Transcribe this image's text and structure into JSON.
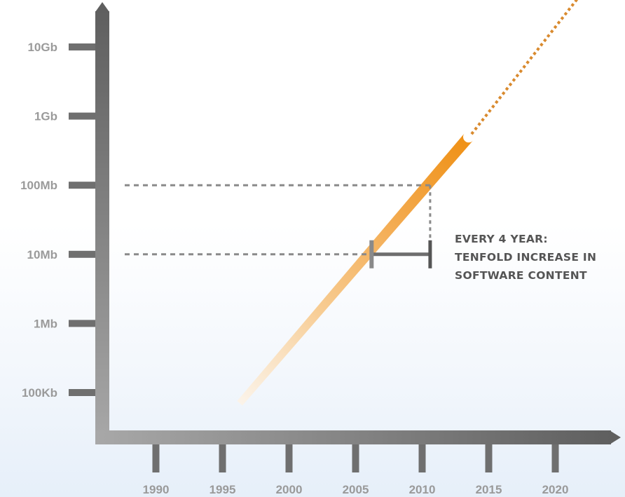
{
  "chart_data": {
    "type": "line",
    "title": "",
    "xlabel": "",
    "ylabel": "",
    "x_ticks": [
      1990,
      1995,
      2000,
      2005,
      2010,
      2015,
      2020
    ],
    "y_scale": "log",
    "y_ticks": [
      {
        "value": 100000,
        "label": "100Kb"
      },
      {
        "value": 1000000,
        "label": "1Mb"
      },
      {
        "value": 10000000,
        "label": "10Mb"
      },
      {
        "value": 100000000,
        "label": "100Mb"
      },
      {
        "value": 1000000000,
        "label": "1Gb"
      },
      {
        "value": 10000000000,
        "label": "10Gb"
      }
    ],
    "series": [
      {
        "style": "solid",
        "color": "#f0951c",
        "x": [
          1996.3,
          2013.5
        ],
        "y": [
          70000,
          500000000
        ]
      },
      {
        "style": "dotted",
        "color": "#d98a2e",
        "x": [
          2013.5,
          2022.5
        ],
        "y": [
          500000000,
          80000000000
        ]
      }
    ],
    "annotation": {
      "lines": [
        "EVERY 4 YEAR:",
        "TENFOLD INCREASE IN",
        "SOFTWARE CONTENT"
      ],
      "bracket_x": [
        2006.2,
        2010.6
      ],
      "bracket_y": 10000000,
      "reference_y": [
        10000000,
        100000000
      ]
    },
    "colors": {
      "axis": "#6f6f6f",
      "tick_label": "#9a9a9a",
      "annotation_text": "#555555",
      "guide": "#8a8a8a",
      "bracket": "#6e6e6e"
    }
  }
}
